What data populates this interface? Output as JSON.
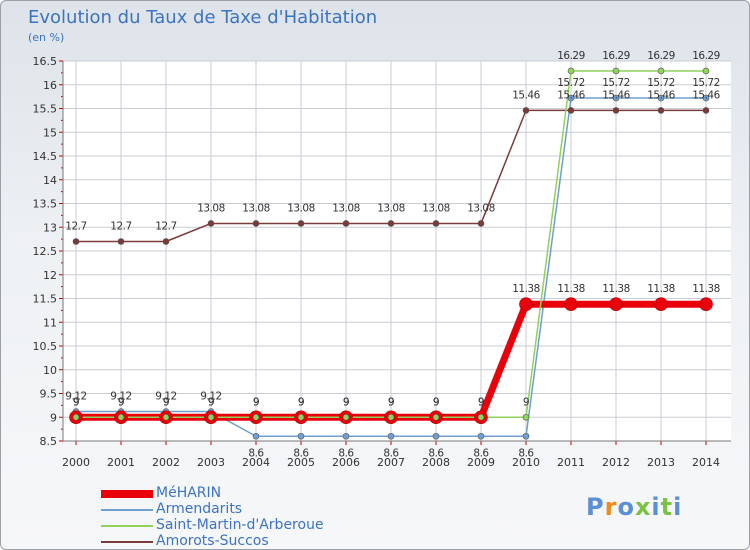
{
  "title": "Evolution du Taux de Taxe d'Habitation",
  "unit_label": "(en %)",
  "logo_text": "Proxiti",
  "colors": {
    "title": "#3c73c2",
    "grid": "#c9ced4",
    "axis_tick": "#d00000",
    "label": "#333333"
  },
  "chart_data": {
    "type": "line",
    "title": "Evolution du Taux de Taxe d'Habitation",
    "ylabel": "(en %)",
    "xlabel": "",
    "x": [
      "2000",
      "2001",
      "2002",
      "2003",
      "2004",
      "2005",
      "2006",
      "2007",
      "2008",
      "2009",
      "2010",
      "2011",
      "2012",
      "2013",
      "2014"
    ],
    "yticks": [
      "8.5",
      "9",
      "9.5",
      "10",
      "10.5",
      "11",
      "11.5",
      "12",
      "12.5",
      "13",
      "13.5",
      "14",
      "14.5",
      "15",
      "15.5",
      "16",
      "16.5"
    ],
    "ylim": [
      8.5,
      16.5
    ],
    "grid": true,
    "legend_position": "bottom-left",
    "series": [
      {
        "name": "MéHARIN",
        "color": "#e8000b",
        "values": [
          9,
          9,
          9,
          9,
          9,
          9,
          9,
          9,
          9,
          9,
          11.38,
          11.38,
          11.38,
          11.38,
          11.38
        ],
        "labels": [
          "9",
          "9",
          "9",
          "9",
          "9",
          "9",
          "9",
          "9",
          "9",
          "9",
          "11.38",
          "11.38",
          "11.38",
          "11.38",
          "11.38"
        ]
      },
      {
        "name": "Armendarits",
        "color": "#6f9fd0",
        "values": [
          9.12,
          9.12,
          9.12,
          9.12,
          8.6,
          8.6,
          8.6,
          8.6,
          8.6,
          8.6,
          8.6,
          15.72,
          15.72,
          15.72,
          15.72
        ],
        "labels": [
          "9.12",
          "9.12",
          "9.12",
          "9.12",
          "8.6",
          "8.6",
          "8.6",
          "8.6",
          "8.6",
          "8.6",
          "8.6",
          "15.72",
          "15.72",
          "15.72",
          "15.72"
        ]
      },
      {
        "name": "Saint-Martin-d'Arberoue",
        "color": "#8fd35a",
        "values": [
          9,
          9,
          9,
          9,
          9,
          9,
          9,
          9,
          9,
          9,
          9,
          16.29,
          16.29,
          16.29,
          16.29
        ],
        "labels": [
          "9",
          "9",
          "9",
          "9",
          "9",
          "9",
          "9",
          "9",
          "9",
          "9",
          "9",
          "16.29",
          "16.29",
          "16.29",
          "16.29"
        ]
      },
      {
        "name": "Amorots-Succos",
        "color": "#7a3b3b",
        "values": [
          12.7,
          12.7,
          12.7,
          13.08,
          13.08,
          13.08,
          13.08,
          13.08,
          13.08,
          13.08,
          15.46,
          15.46,
          15.46,
          15.46,
          15.46
        ],
        "labels": [
          "12.7",
          "12.7",
          "12.7",
          "13.08",
          "13.08",
          "13.08",
          "13.08",
          "13.08",
          "13.08",
          "13.08",
          "15.46",
          "15.46",
          "15.46",
          "15.46",
          "15.46"
        ]
      }
    ]
  }
}
